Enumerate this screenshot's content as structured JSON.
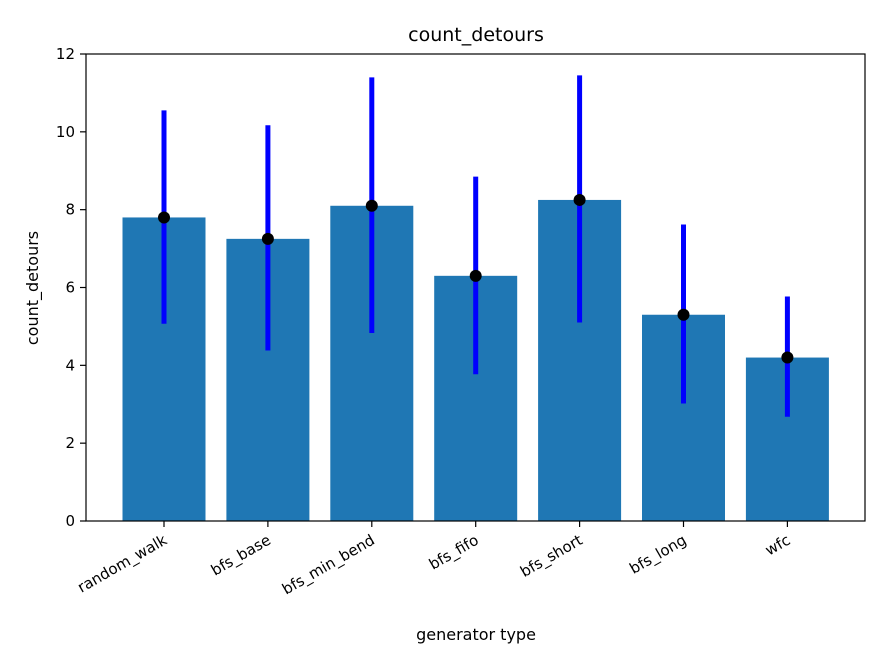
{
  "chart_data": {
    "type": "bar",
    "title": "count_detours",
    "xlabel": "generator type",
    "ylabel": "count_detours",
    "categories": [
      "random_walk",
      "bfs_base",
      "bfs_min_bend",
      "bfs_fifo",
      "bfs_short",
      "bfs_long",
      "wfc"
    ],
    "values": [
      7.8,
      7.25,
      8.1,
      6.3,
      8.25,
      5.3,
      4.2
    ],
    "error_low": [
      5.07,
      4.38,
      4.83,
      3.77,
      5.1,
      3.02,
      2.68
    ],
    "error_high": [
      10.55,
      10.17,
      11.4,
      8.85,
      11.45,
      7.62,
      5.77
    ],
    "ylim": [
      0,
      12
    ],
    "yticks": [
      0,
      2,
      4,
      6,
      8,
      10,
      12
    ],
    "grid": false,
    "colors": {
      "bar": "#1f77b4",
      "errorbar": "#0000ff",
      "marker": "#000000",
      "axis": "#000000"
    }
  }
}
